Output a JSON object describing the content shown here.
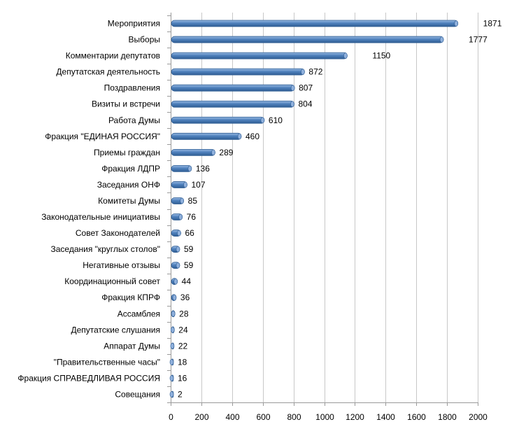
{
  "chart_data": {
    "type": "bar",
    "orientation": "horizontal",
    "categories": [
      "Мероприятия",
      "Выборы",
      "Комментарии депутатов",
      "Депутатская деятельность",
      "Поздравления",
      "Визиты  и встречи",
      "Работа Думы",
      "Фракция \"ЕДИНАЯ РОССИЯ\"",
      "Приемы граждан",
      "Фракция ЛДПР",
      "Заседания ОНФ",
      "Комитеты Думы",
      "Законодательные инициативы",
      "Совет Законодателей",
      "Заседания \"круглых столов\"",
      "Негативные отзывы",
      "Координационный совет",
      "Фракция КПРФ",
      "Ассамблея",
      "Депутатские слушания",
      "Аппарат Думы",
      "\"Правительственные часы\"",
      "Фракция СПРАВЕДЛИВАЯ РОССИЯ",
      "Совещания"
    ],
    "values": [
      1871,
      1777,
      1150,
      872,
      807,
      804,
      610,
      460,
      289,
      136,
      107,
      85,
      76,
      66,
      59,
      59,
      44,
      36,
      28,
      24,
      22,
      18,
      16,
      2
    ],
    "xlim": [
      0,
      2000
    ],
    "x_ticks": [
      0,
      200,
      400,
      600,
      800,
      1000,
      1200,
      1400,
      1600,
      1800,
      2000
    ],
    "grid": true,
    "data_labels": true,
    "colors": {
      "bar": "#4f81bd",
      "bar_highlight": "#8fb0dc",
      "bar_dark": "#2f5d93",
      "grid": "#c8c8c8"
    }
  }
}
